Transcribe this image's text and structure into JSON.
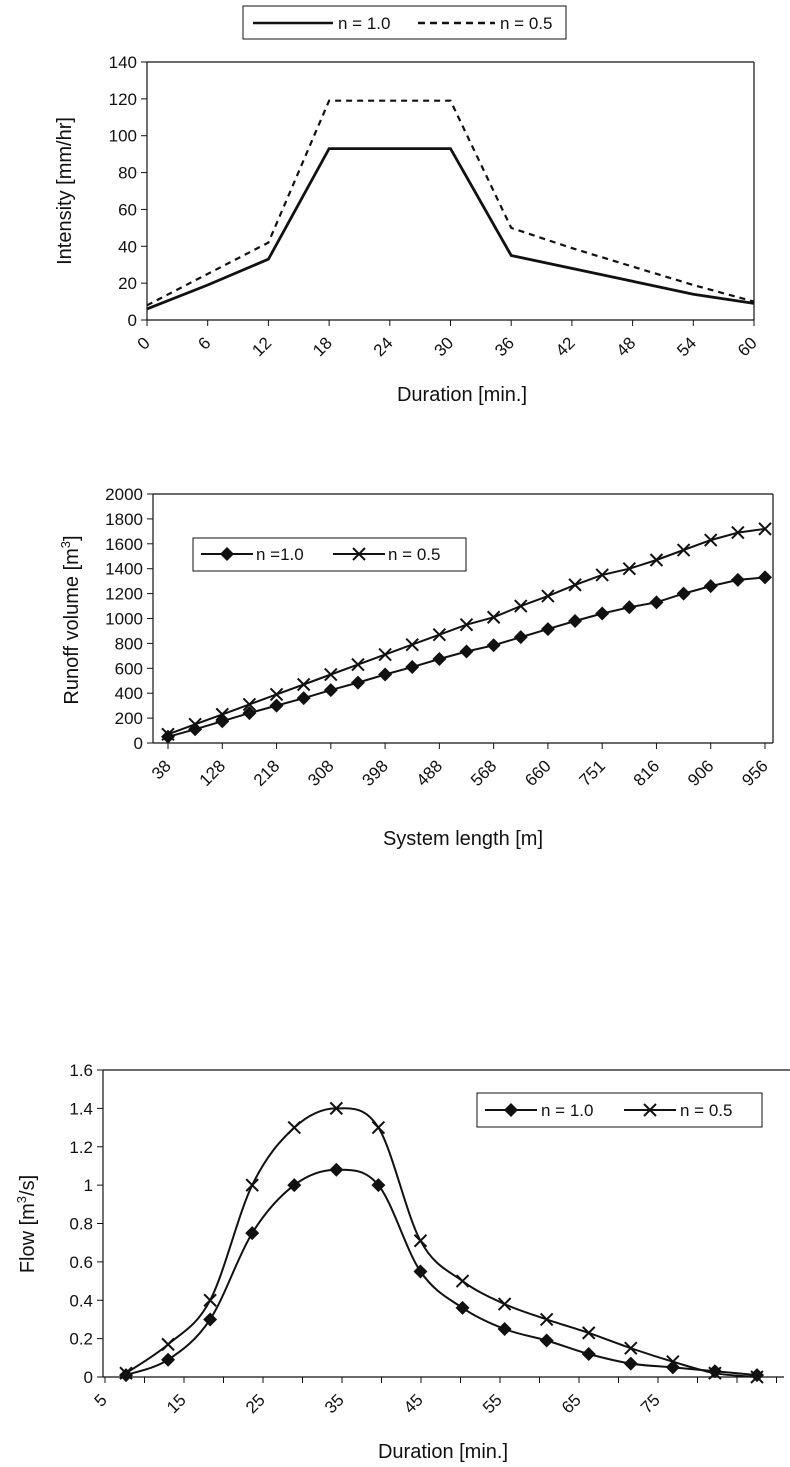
{
  "chart_data": [
    {
      "type": "line",
      "xlabel": "Duration [min.]",
      "ylabel": "Intensity [mm/hr]",
      "ylim": [
        0,
        140
      ],
      "y_ticks": [
        0,
        20,
        40,
        60,
        80,
        100,
        120,
        140
      ],
      "x_tick_labels": [
        "0",
        "6",
        "12",
        "18",
        "24",
        "30",
        "36",
        "42",
        "48",
        "54",
        "60"
      ],
      "xlim": [
        0,
        60
      ],
      "grid": false,
      "legend_position": "top-center",
      "series": [
        {
          "name": "n = 1.0",
          "style": "solid",
          "x": [
            0,
            6,
            12,
            18,
            24,
            30,
            36,
            42,
            48,
            54,
            60
          ],
          "y": [
            6,
            19,
            33,
            93,
            93,
            93,
            35,
            28,
            21,
            14,
            9
          ]
        },
        {
          "name": "n = 0.5",
          "style": "dashed",
          "x": [
            0,
            6,
            12,
            18,
            24,
            30,
            36,
            42,
            48,
            54,
            60
          ],
          "y": [
            8,
            25,
            42,
            119,
            119,
            119,
            50,
            39,
            29,
            19,
            10
          ]
        }
      ]
    },
    {
      "type": "line",
      "xlabel": "System length [m]",
      "ylabel": "Runoff volume [m",
      "ylabel_sup": "3",
      "ylabel_end": "]",
      "ylim": [
        0,
        2000
      ],
      "y_ticks": [
        0,
        200,
        400,
        600,
        800,
        1000,
        1200,
        1400,
        1600,
        1800,
        2000
      ],
      "x_tick_labels": [
        "38",
        "128",
        "218",
        "308",
        "398",
        "488",
        "568",
        "660",
        "751",
        "816",
        "906",
        "956"
      ],
      "grid": false,
      "legend_position": "top-left",
      "series": [
        {
          "name": "n =1.0",
          "marker": "diamond",
          "values": [
            50,
            110,
            175,
            240,
            300,
            360,
            425,
            485,
            550,
            610,
            675,
            735,
            785,
            850,
            915,
            980,
            1040,
            1090,
            1130,
            1200,
            1260,
            1310,
            1330
          ]
        },
        {
          "name": "n = 0.5",
          "marker": "x",
          "values": [
            70,
            150,
            230,
            310,
            390,
            470,
            550,
            630,
            710,
            790,
            870,
            950,
            1010,
            1100,
            1180,
            1270,
            1350,
            1400,
            1470,
            1550,
            1630,
            1690,
            1720
          ]
        }
      ]
    },
    {
      "type": "line",
      "xlabel": "Duration [min.]",
      "ylabel": "Flow [m",
      "ylabel_sup": "3",
      "ylabel_end": "/s]",
      "ylim": [
        0,
        1.6
      ],
      "y_ticks": [
        "0",
        "0.2",
        "0.4",
        "0.6",
        "0.8",
        "1",
        "1.2",
        "1.4",
        "1.6"
      ],
      "x_tick_labels": [
        "5",
        "15",
        "25",
        "35",
        "45",
        "55",
        "65",
        "75"
      ],
      "grid": false,
      "smooth": true,
      "legend_position": "top-right",
      "series": [
        {
          "name": "n = 1.0",
          "marker": "diamond",
          "x": [
            5,
            10,
            15,
            20,
            25,
            30,
            35,
            40,
            45,
            50,
            55,
            60,
            65,
            70,
            75,
            80
          ],
          "y": [
            0.01,
            0.09,
            0.3,
            0.75,
            1.0,
            1.08,
            1.0,
            0.55,
            0.36,
            0.25,
            0.19,
            0.12,
            0.07,
            0.05,
            0.03,
            0.01
          ]
        },
        {
          "name": "n = 0.5",
          "marker": "x",
          "x": [
            5,
            10,
            15,
            20,
            25,
            30,
            35,
            40,
            45,
            50,
            55,
            60,
            65,
            70,
            75,
            80
          ],
          "y": [
            0.02,
            0.17,
            0.4,
            1.0,
            1.3,
            1.4,
            1.3,
            0.71,
            0.5,
            0.38,
            0.3,
            0.23,
            0.15,
            0.08,
            0.02,
            0.0
          ]
        }
      ]
    }
  ]
}
